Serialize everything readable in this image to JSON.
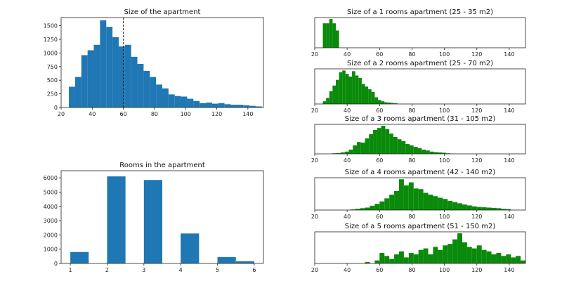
{
  "colors": {
    "blue": "#1f77b4",
    "green": "#0a8a0a"
  },
  "chart_data": [
    {
      "type": "bar",
      "title": "Size of the apartment",
      "color": "#1f77b4",
      "xlim": [
        20,
        150
      ],
      "ylim": [
        0,
        1650
      ],
      "xticks": [
        20,
        40,
        60,
        80,
        100,
        120,
        140
      ],
      "yticks": [
        0,
        250,
        500,
        750,
        1000,
        1250,
        1500
      ],
      "bin_width": 4,
      "bins_start": [
        25,
        29,
        33,
        37,
        41,
        45,
        49,
        53,
        57,
        61,
        65,
        69,
        73,
        77,
        81,
        85,
        89,
        93,
        97,
        101,
        105,
        109,
        113,
        117,
        121,
        125,
        129,
        133,
        137,
        141,
        145
      ],
      "values": [
        380,
        560,
        960,
        1050,
        1150,
        1600,
        1480,
        1290,
        1120,
        1150,
        930,
        800,
        670,
        560,
        420,
        350,
        240,
        210,
        200,
        160,
        120,
        80,
        90,
        70,
        80,
        60,
        50,
        50,
        40,
        30,
        20
      ],
      "vline": 60
    },
    {
      "type": "bar",
      "title": "Rooms in the apartment",
      "color": "#1f77b4",
      "xlim": [
        0.75,
        6.25
      ],
      "ylim": [
        0,
        6500
      ],
      "xticks": [
        1,
        2,
        3,
        4,
        5,
        6
      ],
      "yticks": [
        0,
        1000,
        2000,
        3000,
        4000,
        5000,
        6000
      ],
      "bin_width": 0.5,
      "bins_start": [
        1,
        2,
        3,
        4,
        5,
        5.5
      ],
      "values": [
        800,
        6100,
        5850,
        2100,
        450,
        150
      ]
    },
    {
      "type": "bar",
      "title": "Size of a 1 rooms apartment (25 - 35 m2)",
      "color": "#0a8a0a",
      "xlim": [
        20,
        150
      ],
      "ylim": [
        0,
        1.05
      ],
      "xticks": [
        20,
        40,
        60,
        80,
        100,
        120,
        140
      ],
      "bin_width": 2,
      "bins_start": [
        25,
        27,
        29,
        31,
        33
      ],
      "values": [
        0.85,
        0.85,
        1.0,
        0.85,
        0.6
      ]
    },
    {
      "type": "bar",
      "title": "Size of a 2 rooms apartment (25 - 70 m2)",
      "color": "#0a8a0a",
      "xlim": [
        20,
        150
      ],
      "ylim": [
        0,
        1.05
      ],
      "xticks": [
        20,
        40,
        60,
        80,
        100,
        120,
        140
      ],
      "bin_width": 2,
      "bins_start": [
        25,
        27,
        29,
        31,
        33,
        35,
        37,
        39,
        41,
        43,
        45,
        47,
        49,
        51,
        53,
        55,
        57,
        59,
        61,
        63,
        65,
        67,
        69
      ],
      "values": [
        0.08,
        0.18,
        0.38,
        0.55,
        0.72,
        0.95,
        1.0,
        0.9,
        0.82,
        0.98,
        0.85,
        0.78,
        0.6,
        0.52,
        0.44,
        0.36,
        0.2,
        0.12,
        0.08,
        0.05,
        0.04,
        0.03,
        0.02
      ]
    },
    {
      "type": "bar",
      "title": "Size of a 3 rooms apartment (31 - 105 m2)",
      "color": "#0a8a0a",
      "xlim": [
        20,
        150
      ],
      "ylim": [
        0,
        1.05
      ],
      "xticks": [
        20,
        40,
        60,
        80,
        100,
        120,
        140
      ],
      "bin_width": 2.5,
      "bins_start": [
        31,
        33.5,
        36,
        38.5,
        41,
        43.5,
        46,
        48.5,
        51,
        53.5,
        56,
        58.5,
        61,
        63.5,
        66,
        68.5,
        71,
        73.5,
        76,
        78.5,
        81,
        83.5,
        86,
        88.5,
        91,
        93.5,
        96,
        98.5,
        101,
        103.5
      ],
      "values": [
        0.02,
        0.03,
        0.05,
        0.08,
        0.15,
        0.3,
        0.42,
        0.4,
        0.55,
        0.7,
        0.85,
        0.92,
        1.0,
        0.88,
        0.72,
        0.6,
        0.52,
        0.45,
        0.35,
        0.3,
        0.25,
        0.2,
        0.15,
        0.12,
        0.08,
        0.06,
        0.05,
        0.04,
        0.02,
        0.01
      ]
    },
    {
      "type": "bar",
      "title": "Size of a 4 rooms apartment (42 - 140 m2)",
      "color": "#0a8a0a",
      "xlim": [
        20,
        150
      ],
      "ylim": [
        0,
        1.05
      ],
      "xticks": [
        20,
        40,
        60,
        80,
        100,
        120,
        140
      ],
      "bin_width": 3,
      "bins_start": [
        42,
        45,
        48,
        51,
        54,
        57,
        60,
        63,
        66,
        69,
        72,
        75,
        78,
        81,
        84,
        87,
        90,
        93,
        96,
        99,
        102,
        105,
        108,
        111,
        114,
        117,
        120,
        123,
        126,
        129,
        132,
        135,
        138
      ],
      "values": [
        0.02,
        0.04,
        0.06,
        0.08,
        0.14,
        0.2,
        0.28,
        0.38,
        0.5,
        0.62,
        1.0,
        0.8,
        0.9,
        0.7,
        0.68,
        0.56,
        0.5,
        0.45,
        0.4,
        0.36,
        0.3,
        0.26,
        0.22,
        0.18,
        0.15,
        0.12,
        0.1,
        0.09,
        0.08,
        0.07,
        0.06,
        0.04,
        0.03
      ]
    },
    {
      "type": "bar",
      "title": "Size of a 5 rooms apartment (51 - 150 m2)",
      "color": "#0a8a0a",
      "xlim": [
        20,
        150
      ],
      "ylim": [
        0,
        1.05
      ],
      "xticks": [
        20,
        40,
        60,
        80,
        100,
        120,
        140
      ],
      "bin_width": 3,
      "bins_start": [
        51,
        54,
        57,
        60,
        63,
        66,
        69,
        72,
        75,
        78,
        81,
        84,
        87,
        90,
        93,
        96,
        99,
        102,
        105,
        108,
        111,
        114,
        117,
        120,
        123,
        126,
        129,
        132,
        135,
        138,
        141,
        144,
        147
      ],
      "values": [
        0.05,
        0.0,
        0.1,
        0.35,
        0.25,
        0.15,
        0.3,
        0.4,
        0.2,
        0.35,
        0.3,
        0.45,
        0.5,
        0.3,
        0.55,
        0.45,
        0.6,
        0.65,
        0.8,
        1.0,
        0.7,
        0.55,
        0.5,
        0.6,
        0.45,
        0.4,
        0.3,
        0.35,
        0.25,
        0.3,
        0.2,
        0.25,
        0.1
      ]
    }
  ]
}
